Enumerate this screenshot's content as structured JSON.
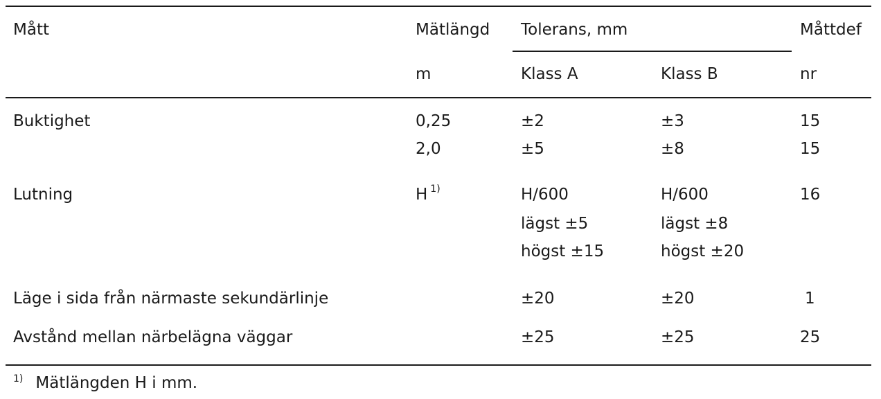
{
  "header": {
    "matt": "Mått",
    "matlangd": "Mätlängd",
    "tolerans": "Tolerans, mm",
    "mattdef": "Måttdef",
    "matlangd_unit": "m",
    "klass_a": "Klass A",
    "klass_b": "Klass B",
    "mattdef_unit": "nr"
  },
  "rows": [
    {
      "label": "Buktighet",
      "lengths": [
        "0,25",
        "2,0"
      ],
      "klass_a": [
        "±2",
        "±5"
      ],
      "klass_b": [
        "±3",
        "±8"
      ],
      "nr": [
        "15",
        "15"
      ]
    },
    {
      "label": "Lutning",
      "length": "H",
      "length_note": "1)",
      "klass_a": [
        "H/600",
        "lägst ±5",
        "högst ±15"
      ],
      "klass_b": [
        "H/600",
        "lägst ±8",
        "högst ±20"
      ],
      "nr": "16"
    },
    {
      "label": "Läge i sida från närmaste sekundärlinje",
      "klass_a": "±20",
      "klass_b": "±20",
      "nr": "1"
    },
    {
      "label": "Avstånd mellan närbelägna väggar",
      "klass_a": "±25",
      "klass_b": "±25",
      "nr": "25"
    }
  ],
  "footnote": {
    "marker": "1)",
    "text": "Mätlängden H i mm."
  }
}
